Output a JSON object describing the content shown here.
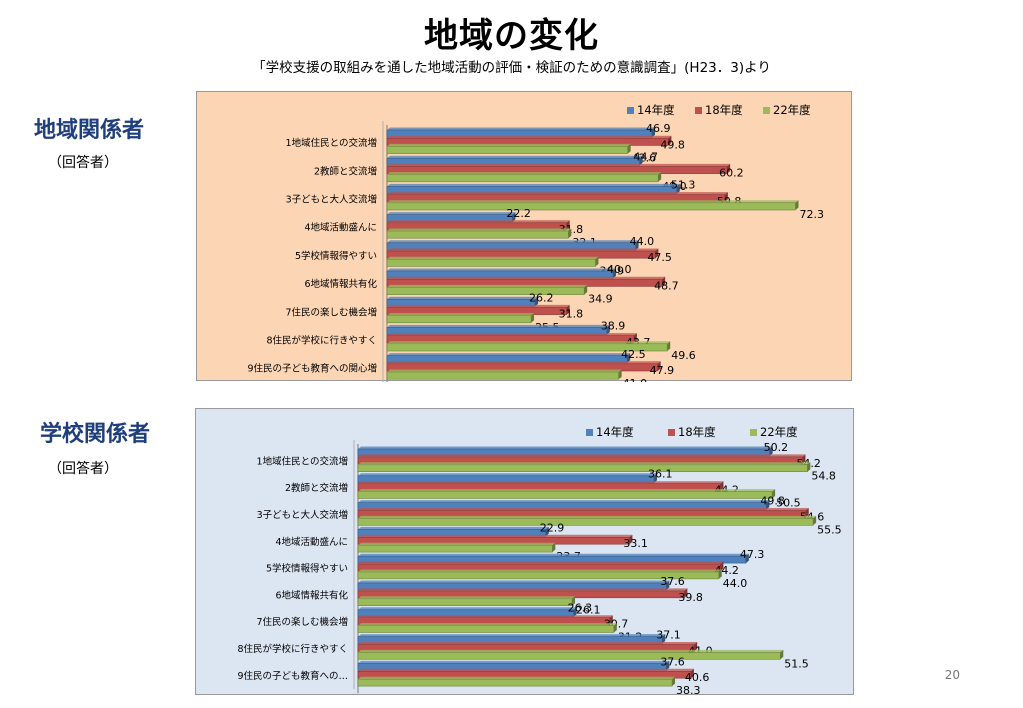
{
  "slide": {
    "title": "地域の変化",
    "subtitle": "「学校支援の取組みを通した地域活動の評価・検証のための意識調査」(H23．3)より",
    "page_number": "20"
  },
  "sections": [
    {
      "title": "地域関係者",
      "sub": "（回答者）"
    },
    {
      "title": "学校関係者",
      "sub": "（回答者）"
    }
  ],
  "colors": {
    "series_14": "#4F81BD",
    "series_18": "#C0504D",
    "series_22": "#9BBB59",
    "panel_1_bg": "#FCD5B5",
    "panel_2_bg": "#DCE6F2",
    "title_color": "#1F3E7C"
  },
  "chart_data": [
    {
      "type": "bar",
      "orientation": "horizontal",
      "categories": [
        "1地域住民との交流増",
        "2教師と交流増",
        "3子どもと大人交流増",
        "4地域活動盛んに",
        "5学校情報得やすい",
        "6地域情報共有化",
        "7住民の楽しむ機会増",
        "8住民が学校に行きやすく",
        "9住民の子ども教育への関心増"
      ],
      "series": [
        {
          "name": "14年度",
          "values": [
            46.9,
            44.7,
            51.3,
            22.2,
            44.0,
            40.0,
            26.2,
            38.9,
            42.5
          ]
        },
        {
          "name": "18年度",
          "values": [
            49.8,
            60.2,
            59.8,
            31.8,
            47.5,
            48.7,
            31.8,
            43.7,
            47.9
          ]
        },
        {
          "name": "22年度",
          "values": [
            42.6,
            48.0,
            72.3,
            32.1,
            36.9,
            34.9,
            25.5,
            49.6,
            41.0
          ]
        }
      ],
      "legend": "top-right",
      "xlim": [
        0,
        80
      ],
      "data_labels": true
    },
    {
      "type": "bar",
      "orientation": "horizontal",
      "categories": [
        "1地域住民との交流増",
        "2教師と交流増",
        "3子どもと大人交流増",
        "4地域活動盛んに",
        "5学校情報得やすい",
        "6地域情報共有化",
        "7住民の楽しむ機会増",
        "8住民が学校に行きやすく",
        "9住民の子ども教育への…"
      ],
      "series": [
        {
          "name": "14年度",
          "values": [
            50.2,
            36.1,
            49.8,
            22.9,
            47.3,
            37.6,
            26.3,
            37.1,
            37.6
          ]
        },
        {
          "name": "18年度",
          "values": [
            54.2,
            44.2,
            54.6,
            33.1,
            44.2,
            39.8,
            30.7,
            41.0,
            40.6
          ]
        },
        {
          "name": "22年度",
          "values": [
            54.8,
            50.5,
            55.5,
            23.7,
            44.0,
            26.1,
            31.2,
            51.5,
            38.3
          ]
        }
      ],
      "legend": "top-right",
      "xlim": [
        0,
        60
      ],
      "data_labels": true
    }
  ]
}
